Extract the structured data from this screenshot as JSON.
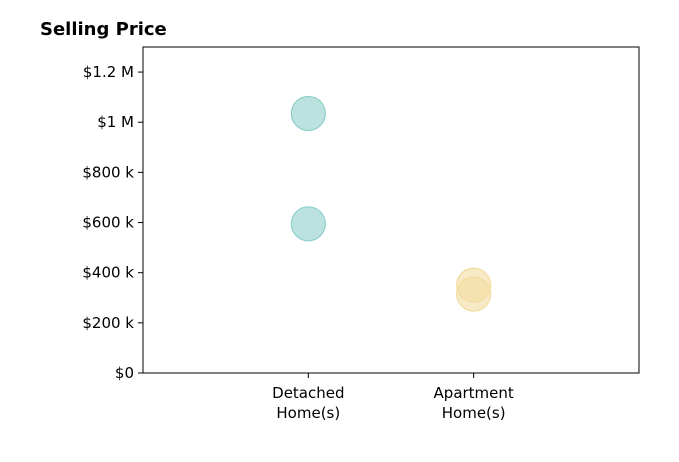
{
  "chart_data": {
    "type": "scatter",
    "title": "Selling Price",
    "xlabel": "",
    "ylabel": "",
    "categories": [
      {
        "lines": [
          "Detached",
          "Home(s)"
        ]
      },
      {
        "lines": [
          "Apartment",
          "Home(s)"
        ]
      }
    ],
    "xlim": [
      -1,
      2
    ],
    "ylim": [
      0,
      1300000
    ],
    "yticks": [
      {
        "value": 0,
        "label": "$0"
      },
      {
        "value": 200000,
        "label": "$200 k"
      },
      {
        "value": 400000,
        "label": "$400 k"
      },
      {
        "value": 600000,
        "label": "$600 k"
      },
      {
        "value": 800000,
        "label": "$800 k"
      },
      {
        "value": 1000000,
        "label": "$1 M"
      },
      {
        "value": 1200000,
        "label": "$1.2 M"
      }
    ],
    "grid": false,
    "series": [
      {
        "color": "#8ecfc9",
        "points": [
          {
            "x": 0,
            "y": 1035000
          },
          {
            "x": 0,
            "y": 595000
          }
        ]
      },
      {
        "color": "#f3dca0",
        "points": [
          {
            "x": 1,
            "y": 350000
          },
          {
            "x": 1,
            "y": 315000
          }
        ]
      }
    ]
  }
}
